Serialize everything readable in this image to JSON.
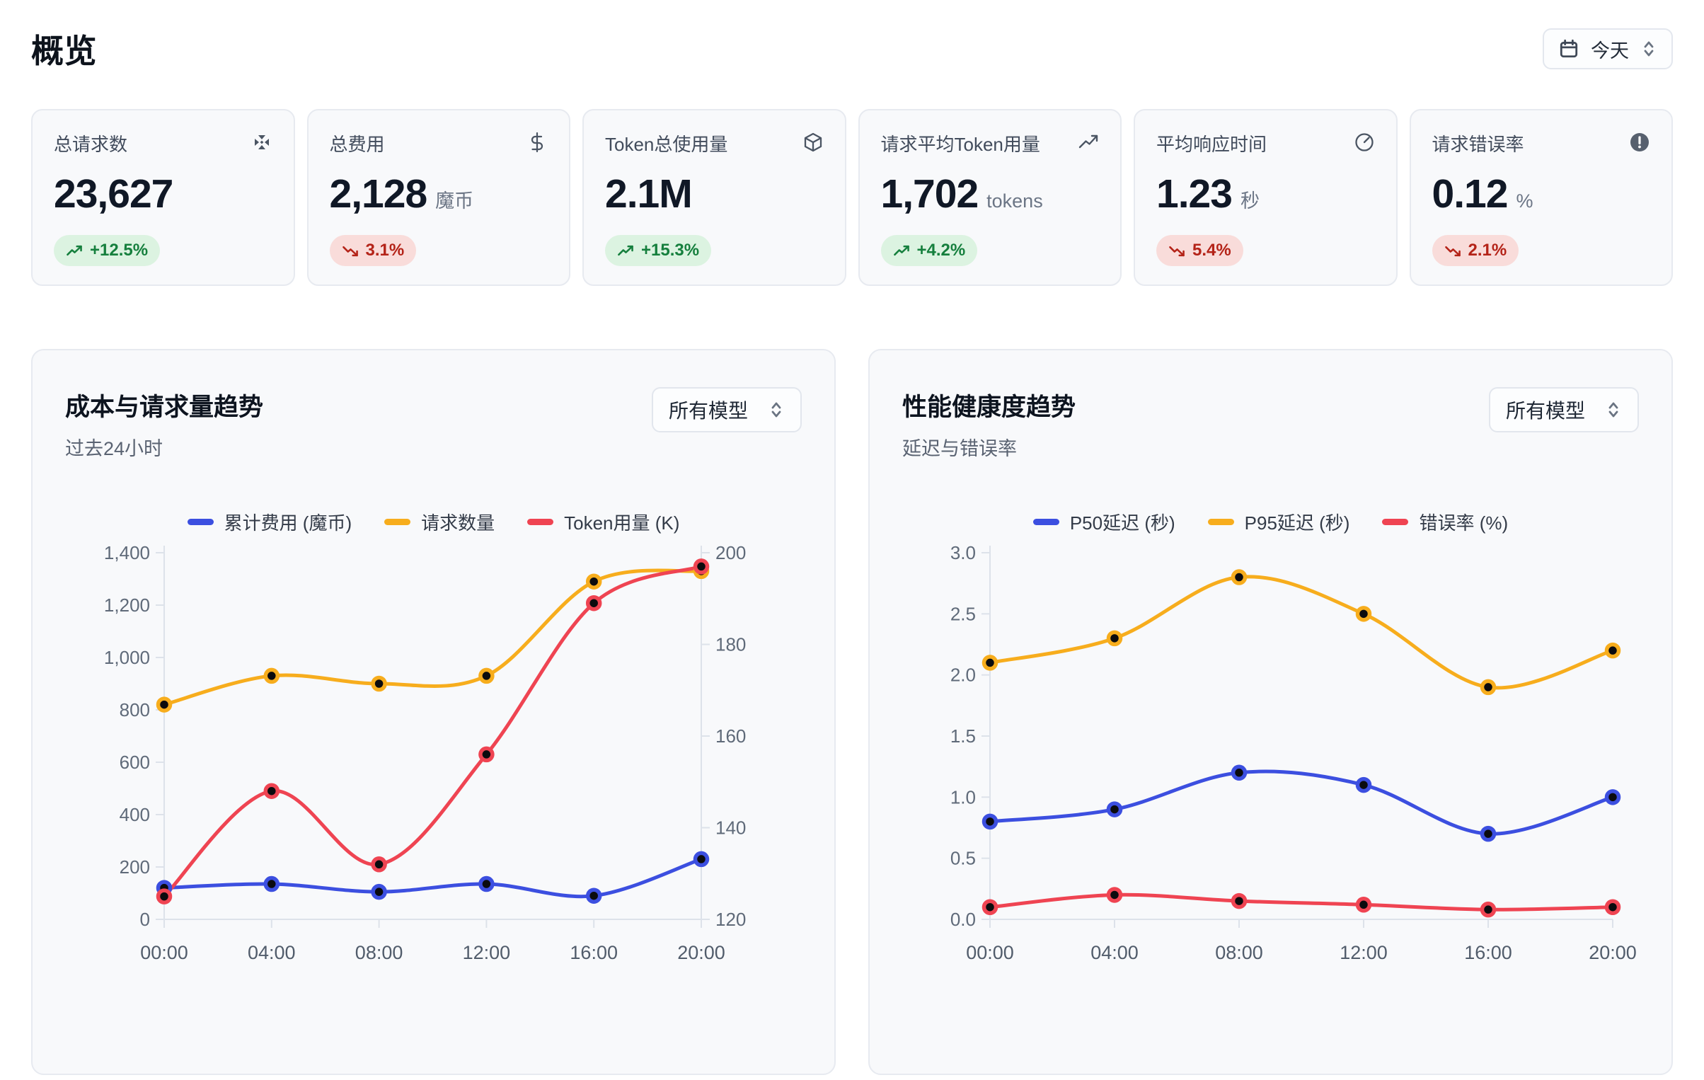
{
  "header": {
    "title": "概览",
    "date_button": {
      "label": "今天",
      "icon": "calendar-icon"
    }
  },
  "stats": [
    {
      "label": "总请求数",
      "icon": "move-icon",
      "value": "23,627",
      "unit": "",
      "change": "+12.5%",
      "trend": "up",
      "badge_color": "green"
    },
    {
      "label": "总费用",
      "icon": "dollar-icon",
      "value": "2,128",
      "unit": "魔币",
      "change": "3.1%",
      "trend": "down",
      "badge_color": "red"
    },
    {
      "label": "Token总使用量",
      "icon": "cube-icon",
      "value": "2.1M",
      "unit": "",
      "change": "+15.3%",
      "trend": "up",
      "badge_color": "green"
    },
    {
      "label": "请求平均Token用量",
      "icon": "trending-up-icon",
      "value": "1,702",
      "unit": "tokens",
      "change": "+4.2%",
      "trend": "up",
      "badge_color": "green"
    },
    {
      "label": "平均响应时间",
      "icon": "gauge-icon",
      "value": "1.23",
      "unit": "秒",
      "change": "5.4%",
      "trend": "down",
      "badge_color": "red"
    },
    {
      "label": "请求错误率",
      "icon": "alert-circle-icon",
      "value": "0.12",
      "unit": "%",
      "change": "2.1%",
      "trend": "down",
      "badge_color": "red"
    }
  ],
  "colors": {
    "blue": "#3C4FE0",
    "orange": "#F7AD1D",
    "red": "#EF4452",
    "green_badge_bg": "#DCF3E1",
    "green_badge_text": "#157F3D",
    "red_badge_bg": "#F9DCDA",
    "red_badge_text": "#B42318",
    "card_bg": "#F8F9FB",
    "card_border": "#E7EAF0",
    "axis_line": "#DDE2EA",
    "axis_text": "#5F6A79"
  },
  "chart_data": [
    {
      "type": "line",
      "title": "成本与请求量趋势",
      "subtitle": "过去24小时",
      "model_filter": "所有模型",
      "legend_position": "top",
      "grid": false,
      "categories": [
        "00:00",
        "04:00",
        "08:00",
        "12:00",
        "16:00",
        "20:00"
      ],
      "left_axis": {
        "min": 0,
        "max": 1400,
        "step": 200,
        "format": "thousands"
      },
      "right_axis": {
        "min": 120,
        "max": 200,
        "step": 20,
        "format": "int"
      },
      "series": [
        {
          "name": "累计费用 (魔币)",
          "color": "#3C4FE0",
          "axis": "left",
          "values": [
            120,
            135,
            105,
            135,
            90,
            230
          ]
        },
        {
          "name": "请求数量",
          "color": "#F7AD1D",
          "axis": "left",
          "values": [
            820,
            930,
            900,
            930,
            1290,
            1330
          ]
        },
        {
          "name": "Token用量 (K)",
          "color": "#EF4452",
          "axis": "right",
          "values": [
            125,
            148,
            132,
            156,
            189,
            197
          ]
        }
      ]
    },
    {
      "type": "line",
      "title": "性能健康度趋势",
      "subtitle": "延迟与错误率",
      "model_filter": "所有模型",
      "legend_position": "top",
      "grid": false,
      "categories": [
        "00:00",
        "04:00",
        "08:00",
        "12:00",
        "16:00",
        "20:00"
      ],
      "left_axis": {
        "min": 0,
        "max": 3,
        "step": 0.5,
        "format": "decimal1"
      },
      "series": [
        {
          "name": "P50延迟 (秒)",
          "color": "#3C4FE0",
          "axis": "left",
          "values": [
            0.8,
            0.9,
            1.2,
            1.1,
            0.7,
            1.0
          ]
        },
        {
          "name": "P95延迟 (秒)",
          "color": "#F7AD1D",
          "axis": "left",
          "values": [
            2.1,
            2.3,
            2.8,
            2.5,
            1.9,
            2.2
          ]
        },
        {
          "name": "错误率 (%)",
          "color": "#EF4452",
          "axis": "left",
          "values": [
            0.1,
            0.2,
            0.15,
            0.12,
            0.08,
            0.1
          ]
        }
      ]
    }
  ]
}
